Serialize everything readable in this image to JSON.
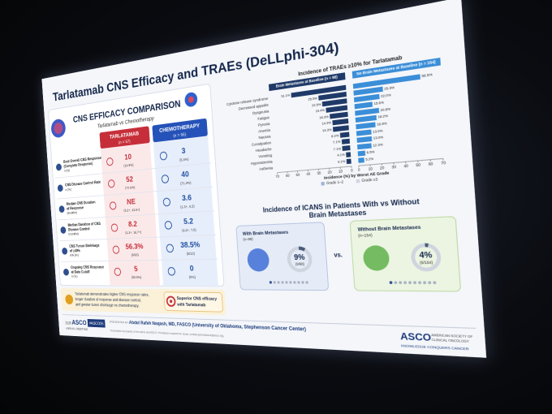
{
  "slide": {
    "title": "Tarlatamab CNS Efficacy and TRAEs (DeLLphi-304)",
    "efficacy": {
      "heading": "CNS EFFICACY COMPARISON",
      "subtitle": "Tarlatamab vs Chemotherapy",
      "columns": [
        {
          "name": "TARLATAMAB",
          "n": "(n = 67)"
        },
        {
          "name": "CHEMOTHERAPY",
          "n": "(n = 56)"
        }
      ],
      "rows": [
        {
          "label": [
            "Best Overall CNS Response",
            "(Complete Response)",
            "n (%)"
          ],
          "tarlatamab": [
            "10",
            "(14.9%)"
          ],
          "chemotherapy": [
            "3",
            "(5.4%)"
          ]
        },
        {
          "label": [
            "CNS Disease Control Rate",
            "n (%)"
          ],
          "tarlatamab": [
            "52",
            "(77.6%)"
          ],
          "chemotherapy": [
            "40",
            "(71.4%)"
          ]
        },
        {
          "label": [
            "Median CNS Duration",
            "of Response",
            "(months)"
          ],
          "tarlatamab": [
            "NE",
            "(5.2+, 13.6+)"
          ],
          "chemotherapy": [
            "3.6",
            "(1.3+, 4.2)"
          ]
        },
        {
          "label": [
            "Median Duration of CNS",
            "Disease Control",
            "(months)"
          ],
          "tarlatamab": [
            "8.2",
            "(1.2+, 16.7+)"
          ],
          "chemotherapy": [
            "5.2",
            "(1.2+, 7.0)"
          ]
        },
        {
          "label": [
            "CNS Tumor Shrinkage",
            "of ≥30%",
            "n/N (%)"
          ],
          "tarlatamab": [
            "56.3%",
            "(9/16)"
          ],
          "chemotherapy": [
            "38.5%",
            "(5/13)"
          ]
        },
        {
          "label": [
            "Ongoing CNS Response",
            "at Data Cutoff",
            "n (%)"
          ],
          "tarlatamab": [
            "5",
            "(50.0%)"
          ],
          "chemotherapy": [
            "0",
            "(0%)"
          ]
        }
      ],
      "summary": [
        "Tarlatamab demonstrates higher CNS response rates,",
        "longer duration of response and disease control,",
        "and greater tumor shrinkage vs chemotherapy."
      ],
      "callout": [
        "Superior CNS efficacy",
        "with Tarlatamab"
      ]
    },
    "icans": {
      "title": [
        "Incidence of ICANS in Patients With vs Without",
        "Brain Metastases"
      ],
      "groups": [
        {
          "name": "With Brain Metastases",
          "n": "(n=98)",
          "value": 9,
          "value_label": "9%",
          "fraction": "(9/98)",
          "color": "#4a5a78"
        },
        {
          "name": "Without Brain Metastases",
          "n": "(n=154)",
          "value": 4,
          "value_label": "4%",
          "fraction": "(6/154)",
          "color": "#4a5a78"
        }
      ],
      "versus": "vs."
    },
    "footer": {
      "meeting_year": "2026",
      "meeting_brand": "ASCO",
      "meeting_name": "ANNUAL MEETING",
      "hashtag": "#ASCO26",
      "presented_by": "PRESENTED BY:",
      "presenter": "Abdul Rafeh Naqash, MD, FASCO (University of Oklahoma, Stephenson Cancer Center)",
      "notice": "Presentation is property of the author and ASCO. Permission required for reuse; contact permissions@asco.org.",
      "logo": "ASCO",
      "society": [
        "AMERICAN SOCIETY OF",
        "CLINICAL ONCOLOGY"
      ],
      "tagline": "KNOWLEDGE CONQUERS CANCER"
    }
  },
  "chart_data": {
    "type": "bar",
    "title": "Incidence of TRAEs ≥10% for Tarlatamab",
    "categories": [
      "Cytokine release syndrome",
      "Decreased appetite",
      "Dysgeusia",
      "Fatigue",
      "Pyrexia",
      "Anemia",
      "Nausea",
      "Constipation",
      "Headache",
      "Vomiting",
      "Hyponatremia",
      "Asthenia"
    ],
    "series": [
      {
        "name": "Brain Metastases at Baseline (n = 98)",
        "color": "#1f3a68",
        "values": [
          51.1,
          25.5,
          22.5,
          19.4,
          16.3,
          14.3,
          14.3,
          8.2,
          7.1,
          7.1,
          4.1,
          4.1
        ],
        "value_labels": [
          "51.1%",
          "25.5%",
          "22.5%",
          "19.4%",
          "16.3%",
          "14.3%",
          "14.3%",
          "8.2%",
          "7.1%",
          "7.1%",
          "4.1%",
          "4.1%"
        ]
      },
      {
        "name": "No Brain Metastases at Baseline (n = 154)",
        "color": "#3b8ed8",
        "values": [
          56.5,
          25.3,
          22.0,
          15.6,
          20.8,
          18.2,
          16.9,
          13.0,
          13.0,
          12.3,
          6.5,
          5.2
        ],
        "value_labels": [
          "56.5%",
          "25.3%",
          "22.0%",
          "15.6%",
          "20.8%",
          "18.2%",
          "16.9%",
          "13.0%",
          "13.0%",
          "12.3%",
          "6.5%",
          "5.2%"
        ]
      }
    ],
    "xlim": [
      0,
      70
    ],
    "xticks": [
      0,
      10,
      20,
      30,
      40,
      50,
      60,
      70
    ],
    "xlabel": "Incidence (%) by Worst AE Grade",
    "grade_legend": [
      "Grade 1–2",
      "Grade ≥3"
    ]
  }
}
